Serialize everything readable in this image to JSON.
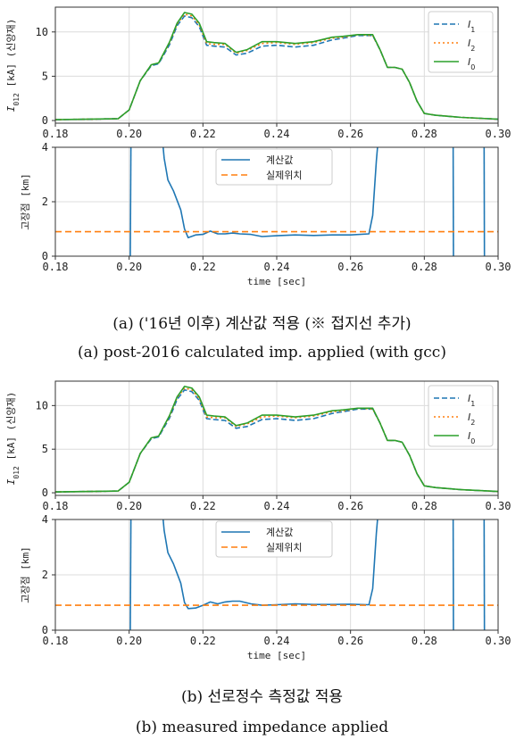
{
  "colors": {
    "I1": "#1f77b4",
    "I2": "#ff7f0e",
    "I0": "#2ca02c",
    "calc": "#1f77b4",
    "actual": "#ff7f0e",
    "grid": "#dcdcdc"
  },
  "captions": {
    "a_kr": "(a) ('16년 이후) 계산값 적용 (※ 접지선 추가)",
    "a_en": "(a) post-2016 calculated imp. applied (with gcc)",
    "b_kr": "(b) 선로정수 측정값 적용",
    "b_en": "(b) measured impedance applied"
  },
  "chart_data": [
    {
      "type": "line",
      "panel": "a-current",
      "ylabel": "I012 [kA] (신양재)",
      "xlim": [
        0.18,
        0.3
      ],
      "ylim": [
        -0.3,
        12.8
      ],
      "xticks": [
        "0.18",
        "0.20",
        "0.22",
        "0.24",
        "0.26",
        "0.28",
        "0.30"
      ],
      "yticks": [
        "0",
        "5",
        "10"
      ],
      "grid": true,
      "legend_position": "top-right",
      "series": [
        {
          "name": "I1",
          "x": [
            0.18,
            0.197,
            0.2,
            0.203,
            0.206,
            0.208,
            0.211,
            0.213,
            0.215,
            0.217,
            0.219,
            0.221,
            0.223,
            0.226,
            0.229,
            0.232,
            0.236,
            0.24,
            0.245,
            0.25,
            0.255,
            0.258,
            0.262,
            0.266,
            0.268,
            0.27,
            0.272,
            0.274,
            0.276,
            0.278,
            0.28,
            0.283,
            0.29,
            0.3
          ],
          "y": [
            0.1,
            0.2,
            1.2,
            4.5,
            6.2,
            6.4,
            8.6,
            10.7,
            11.8,
            11.6,
            10.6,
            8.5,
            8.4,
            8.3,
            7.4,
            7.6,
            8.4,
            8.5,
            8.3,
            8.5,
            9.1,
            9.3,
            9.6,
            9.6,
            8.0,
            6.0,
            6.0,
            5.8,
            4.3,
            2.2,
            0.8,
            0.6,
            0.35,
            0.15
          ]
        },
        {
          "name": "I2",
          "x": [
            0.18,
            0.197,
            0.2,
            0.203,
            0.206,
            0.208,
            0.211,
            0.213,
            0.215,
            0.217,
            0.219,
            0.221,
            0.223,
            0.226,
            0.229,
            0.232,
            0.236,
            0.24,
            0.245,
            0.25,
            0.255,
            0.258,
            0.262,
            0.266,
            0.268,
            0.27,
            0.272,
            0.274,
            0.276,
            0.278,
            0.28,
            0.283,
            0.29,
            0.3
          ],
          "y": [
            0.1,
            0.2,
            1.2,
            4.5,
            6.3,
            6.5,
            8.8,
            10.9,
            12.0,
            11.8,
            10.8,
            8.7,
            8.6,
            8.6,
            7.6,
            7.9,
            8.7,
            8.8,
            8.6,
            8.8,
            9.3,
            9.4,
            9.7,
            9.6,
            8.0,
            6.0,
            6.0,
            5.8,
            4.3,
            2.2,
            0.8,
            0.6,
            0.35,
            0.15
          ]
        },
        {
          "name": "I0",
          "x": [
            0.18,
            0.197,
            0.2,
            0.203,
            0.206,
            0.208,
            0.211,
            0.213,
            0.215,
            0.217,
            0.219,
            0.221,
            0.223,
            0.226,
            0.229,
            0.232,
            0.236,
            0.24,
            0.245,
            0.25,
            0.255,
            0.258,
            0.262,
            0.266,
            0.268,
            0.27,
            0.272,
            0.274,
            0.276,
            0.278,
            0.28,
            0.283,
            0.29,
            0.3
          ],
          "y": [
            0.1,
            0.2,
            1.2,
            4.5,
            6.3,
            6.5,
            8.9,
            11.0,
            12.2,
            12.0,
            11.0,
            8.9,
            8.8,
            8.7,
            7.7,
            8.0,
            8.9,
            8.9,
            8.7,
            8.9,
            9.4,
            9.5,
            9.7,
            9.7,
            8.0,
            6.0,
            6.0,
            5.8,
            4.3,
            2.2,
            0.8,
            0.6,
            0.35,
            0.15
          ]
        }
      ]
    },
    {
      "type": "line",
      "panel": "a-location",
      "ylabel": "고장점 [km]",
      "xlabel": "time [sec]",
      "xlim": [
        0.18,
        0.3
      ],
      "ylim": [
        0,
        4
      ],
      "xticks": [
        "0.18",
        "0.20",
        "0.22",
        "0.24",
        "0.26",
        "0.28",
        "0.30"
      ],
      "yticks": [
        "0",
        "2",
        "4"
      ],
      "grid": true,
      "legend_position": "top-center",
      "series": [
        {
          "name": "계산값",
          "segments": [
            {
              "x": [
                0.2003,
                0.2005
              ],
              "y": [
                -0.3,
                4.3
              ]
            },
            {
              "x": [
                0.209,
                0.2095,
                0.2105,
                0.212,
                0.214,
                0.215,
                0.216,
                0.218,
                0.22,
                0.222,
                0.224,
                0.226,
                0.228,
                0.23,
                0.233,
                0.236,
                0.24,
                0.245,
                0.25,
                0.255,
                0.26,
                0.265,
                0.266,
                0.267,
                0.2675
              ],
              "y": [
                4.3,
                3.6,
                2.8,
                2.4,
                1.7,
                1.0,
                0.68,
                0.78,
                0.8,
                0.92,
                0.82,
                0.82,
                0.85,
                0.82,
                0.8,
                0.72,
                0.75,
                0.78,
                0.76,
                0.78,
                0.78,
                0.82,
                1.5,
                3.5,
                4.3
              ]
            },
            {
              "x": [
                0.2878,
                0.2879
              ],
              "y": [
                4.3,
                -0.3
              ]
            },
            {
              "x": [
                0.2962,
                0.2963
              ],
              "y": [
                4.3,
                -0.3
              ]
            }
          ]
        },
        {
          "name": "실제위치",
          "x": [
            0.18,
            0.3
          ],
          "y": [
            0.9,
            0.9
          ]
        }
      ]
    },
    {
      "type": "line",
      "panel": "b-current",
      "ylabel": "I012 [kA] (신양재)",
      "xlim": [
        0.18,
        0.3
      ],
      "ylim": [
        -0.3,
        12.8
      ],
      "xticks": [
        "0.18",
        "0.20",
        "0.22",
        "0.24",
        "0.26",
        "0.28",
        "0.30"
      ],
      "yticks": [
        "0",
        "5",
        "10"
      ],
      "grid": true,
      "legend_position": "top-right",
      "series": [
        {
          "name": "I1",
          "x": [
            0.18,
            0.197,
            0.2,
            0.203,
            0.206,
            0.208,
            0.211,
            0.213,
            0.215,
            0.217,
            0.219,
            0.221,
            0.223,
            0.226,
            0.229,
            0.232,
            0.236,
            0.24,
            0.245,
            0.25,
            0.255,
            0.258,
            0.262,
            0.266,
            0.268,
            0.27,
            0.272,
            0.274,
            0.276,
            0.278,
            0.28,
            0.283,
            0.29,
            0.3
          ],
          "y": [
            0.1,
            0.2,
            1.2,
            4.5,
            6.2,
            6.4,
            8.6,
            10.7,
            11.8,
            11.6,
            10.6,
            8.5,
            8.4,
            8.3,
            7.4,
            7.6,
            8.4,
            8.5,
            8.3,
            8.5,
            9.1,
            9.3,
            9.6,
            9.6,
            8.0,
            6.0,
            6.0,
            5.8,
            4.3,
            2.2,
            0.8,
            0.6,
            0.35,
            0.15
          ]
        },
        {
          "name": "I2",
          "x": [
            0.18,
            0.197,
            0.2,
            0.203,
            0.206,
            0.208,
            0.211,
            0.213,
            0.215,
            0.217,
            0.219,
            0.221,
            0.223,
            0.226,
            0.229,
            0.232,
            0.236,
            0.24,
            0.245,
            0.25,
            0.255,
            0.258,
            0.262,
            0.266,
            0.268,
            0.27,
            0.272,
            0.274,
            0.276,
            0.278,
            0.28,
            0.283,
            0.29,
            0.3
          ],
          "y": [
            0.1,
            0.2,
            1.2,
            4.5,
            6.3,
            6.5,
            8.8,
            10.9,
            12.0,
            11.8,
            10.8,
            8.7,
            8.6,
            8.6,
            7.6,
            7.9,
            8.7,
            8.8,
            8.6,
            8.8,
            9.3,
            9.4,
            9.7,
            9.6,
            8.0,
            6.0,
            6.0,
            5.8,
            4.3,
            2.2,
            0.8,
            0.6,
            0.35,
            0.15
          ]
        },
        {
          "name": "I0",
          "x": [
            0.18,
            0.197,
            0.2,
            0.203,
            0.206,
            0.208,
            0.211,
            0.213,
            0.215,
            0.217,
            0.219,
            0.221,
            0.223,
            0.226,
            0.229,
            0.232,
            0.236,
            0.24,
            0.245,
            0.25,
            0.255,
            0.258,
            0.262,
            0.266,
            0.268,
            0.27,
            0.272,
            0.274,
            0.276,
            0.278,
            0.28,
            0.283,
            0.29,
            0.3
          ],
          "y": [
            0.1,
            0.2,
            1.2,
            4.5,
            6.3,
            6.5,
            8.9,
            11.0,
            12.2,
            12.0,
            11.0,
            8.9,
            8.8,
            8.7,
            7.7,
            8.0,
            8.9,
            8.9,
            8.7,
            8.9,
            9.4,
            9.5,
            9.7,
            9.7,
            8.0,
            6.0,
            6.0,
            5.8,
            4.3,
            2.2,
            0.8,
            0.6,
            0.35,
            0.15
          ]
        }
      ]
    },
    {
      "type": "line",
      "panel": "b-location",
      "ylabel": "고장점 [km]",
      "xlabel": "time [sec]",
      "xlim": [
        0.18,
        0.3
      ],
      "ylim": [
        0,
        4
      ],
      "xticks": [
        "0.18",
        "0.20",
        "0.22",
        "0.24",
        "0.26",
        "0.28",
        "0.30"
      ],
      "yticks": [
        "0",
        "2",
        "4"
      ],
      "grid": true,
      "legend_position": "top-center",
      "series": [
        {
          "name": "계산값",
          "segments": [
            {
              "x": [
                0.2003,
                0.2005
              ],
              "y": [
                -0.3,
                4.3
              ]
            },
            {
              "x": [
                0.209,
                0.2095,
                0.2105,
                0.212,
                0.214,
                0.215,
                0.216,
                0.218,
                0.22,
                0.222,
                0.224,
                0.226,
                0.228,
                0.23,
                0.233,
                0.236,
                0.24,
                0.245,
                0.25,
                0.255,
                0.26,
                0.265,
                0.266,
                0.267,
                0.2675
              ],
              "y": [
                4.3,
                3.6,
                2.8,
                2.4,
                1.7,
                1.0,
                0.78,
                0.8,
                0.9,
                1.02,
                0.95,
                1.02,
                1.05,
                1.05,
                0.95,
                0.9,
                0.92,
                0.95,
                0.93,
                0.93,
                0.94,
                0.92,
                1.5,
                3.5,
                4.3
              ]
            },
            {
              "x": [
                0.2878,
                0.2879
              ],
              "y": [
                4.3,
                -0.3
              ]
            },
            {
              "x": [
                0.2962,
                0.2963
              ],
              "y": [
                4.3,
                -0.3
              ]
            }
          ]
        },
        {
          "name": "실제위치",
          "x": [
            0.18,
            0.3
          ],
          "y": [
            0.9,
            0.9
          ]
        }
      ]
    }
  ]
}
